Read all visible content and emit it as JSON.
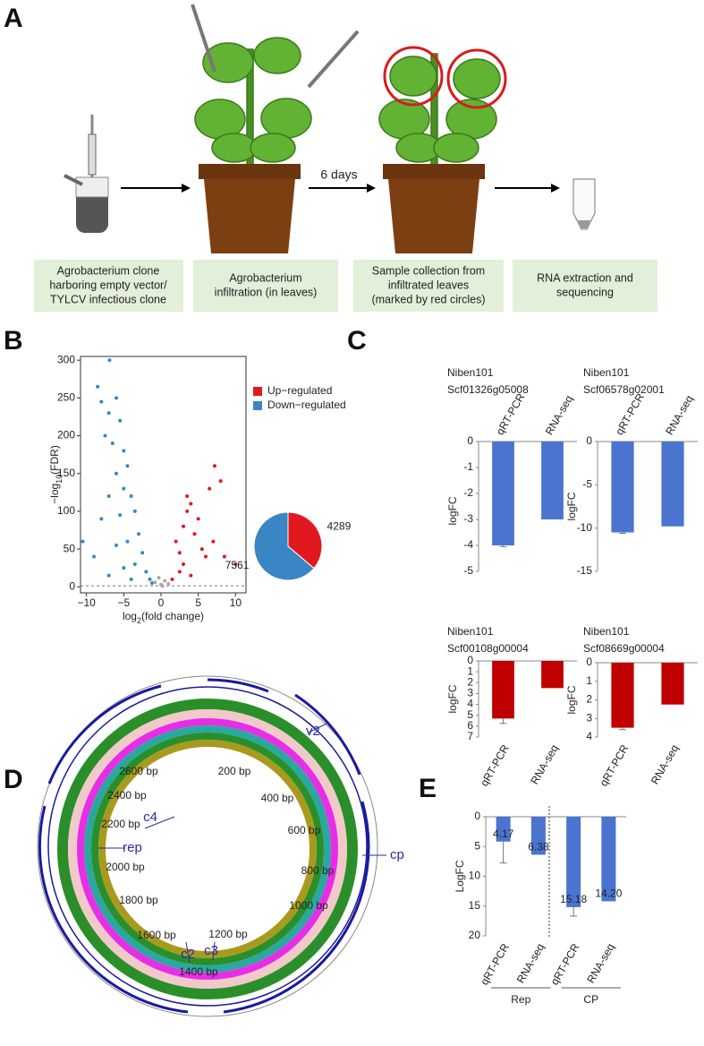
{
  "panel_labels": [
    "A",
    "B",
    "C",
    "D",
    "E"
  ],
  "workflow": {
    "interval": "6 days",
    "steps": [
      [
        "Agrobacterium clone",
        "harboring empty vector/",
        "TYLCV infectious clone"
      ],
      [
        "Agrobacterium",
        "infiltration (in leaves)"
      ],
      [
        "Sample collection from",
        "infiltrated leaves",
        "(marked by red circles)"
      ],
      [
        "RNA extraction and",
        "sequencing"
      ]
    ]
  },
  "genome_map": {
    "ticks": [
      "200 bp",
      "400 bp",
      "600 bp",
      "800 bp",
      "1000 bp",
      "1200 bp",
      "1400 bp",
      "1600 bp",
      "1800 bp",
      "2000 bp",
      "2200 bp",
      "2400 bp",
      "2600 bp"
    ],
    "genes": [
      "v2",
      "cp",
      "rep",
      "c4",
      "c2",
      "c3"
    ]
  },
  "chart_data": [
    {
      "type": "scatter",
      "y_label_parts": [
        "−log",
        "10",
        "(FDR)"
      ],
      "x_label_parts": [
        "log",
        "2",
        "(fold change)"
      ],
      "xlim": [
        -10.8,
        11.4
      ],
      "ylim": [
        -8,
        305
      ],
      "xticks": [
        {
          "value": -10,
          "label": "−10"
        },
        {
          "value": -5,
          "label": "−5"
        },
        0,
        5,
        10
      ],
      "yticks": [
        0,
        50,
        100,
        150,
        200,
        250,
        300
      ],
      "threshold": 1.3,
      "series": [
        {
          "name": "Up−regulated",
          "color": "#e0191f",
          "x": [
            2,
            2.5,
            3,
            3.5,
            4,
            3.5,
            5,
            6.5,
            7.2,
            8,
            4.5,
            6,
            5.5,
            8.5,
            2.5,
            3,
            4,
            1.5,
            10,
            7
          ],
          "y": [
            60,
            45,
            80,
            100,
            110,
            120,
            90,
            130,
            160,
            140,
            70,
            40,
            50,
            40,
            20,
            30,
            15,
            10,
            30,
            60
          ]
        },
        {
          "name": "Down−regulated",
          "color": "#3a86c4",
          "x": [
            -8.5,
            -6.9,
            -8,
            -7,
            -6,
            -5.5,
            -7.5,
            -6.5,
            -5,
            -4.5,
            -6,
            -5,
            -4,
            -7,
            -3.5,
            -5.5,
            -8,
            -3,
            -4.5,
            -6,
            -2.5,
            -9,
            -10.5,
            -3.5,
            -2,
            -5,
            -1.5,
            -7,
            -4,
            -1.2
          ],
          "y": [
            265,
            300,
            245,
            230,
            250,
            220,
            200,
            190,
            180,
            160,
            150,
            130,
            120,
            120,
            100,
            95,
            90,
            70,
            60,
            55,
            45,
            40,
            60,
            30,
            20,
            25,
            10,
            15,
            10,
            5
          ]
        },
        {
          "color": "#aaaaaa",
          "x": [
            -0.8,
            0,
            0.5,
            -0.3,
            1,
            0.2
          ],
          "y": [
            6,
            3,
            8,
            12,
            4,
            1
          ]
        }
      ]
    },
    {
      "type": "pie",
      "values": [
        4289,
        7561
      ],
      "colors": [
        "#e0191f",
        "#3a86c4"
      ]
    },
    {
      "type": "bar",
      "title": [
        "Niben101",
        "Scf01326g05008"
      ],
      "y_label": "logFC",
      "categories": [
        "qRT-PCR",
        "RNA-seq"
      ],
      "values": [
        -4.0,
        -3.0
      ],
      "errors": [
        0.05,
        null
      ],
      "color": "#4a74cf",
      "ylim": [
        -5,
        0
      ],
      "yticks": [
        -5,
        -4,
        -3,
        -2,
        -1,
        0
      ]
    },
    {
      "type": "bar",
      "title": [
        "Niben101",
        "Scf06578g02001"
      ],
      "y_label": "logFC",
      "categories": [
        "qRT-PCR",
        "RNA-seq"
      ],
      "values": [
        -10.5,
        -9.8
      ],
      "errors": [
        0.1,
        null
      ],
      "color": "#4a74cf",
      "ylim": [
        -15,
        0
      ],
      "yticks": [
        -15,
        -10,
        -5,
        0
      ]
    },
    {
      "type": "bar",
      "title": [
        "Niben101",
        "Scf00108g00004"
      ],
      "y_label": "logFC",
      "categories": [
        "qRT-PCR",
        "RNA-seq"
      ],
      "values": [
        5.3,
        2.5
      ],
      "errors": [
        0.45,
        null
      ],
      "color": "#c00000",
      "ylim": [
        0,
        7
      ],
      "yticks": [
        0,
        1,
        2,
        3,
        4,
        5,
        6,
        7
      ]
    },
    {
      "type": "bar",
      "title": [
        "Niben101",
        "Scf08669g00004"
      ],
      "y_label": "logFC",
      "categories": [
        "qRT-PCR",
        "RNA-seq"
      ],
      "values": [
        3.5,
        2.25
      ],
      "errors": [
        0.1,
        null
      ],
      "color": "#c00000",
      "ylim": [
        0,
        4
      ],
      "yticks": [
        0,
        1,
        2,
        3,
        4
      ]
    },
    {
      "type": "bar",
      "y_label": "LogFC",
      "categories": [
        "qRT-PCR",
        "RNA-seq",
        "qRT-PCR",
        "RNA-seq"
      ],
      "groups": [
        "Rep",
        "CP"
      ],
      "values": [
        4.17,
        6.38,
        15.18,
        14.2
      ],
      "value_labels": [
        "4.17",
        "6.38",
        "15.18",
        "14.20"
      ],
      "errors": [
        3.6,
        null,
        1.5,
        null
      ],
      "color": "#4a74cf",
      "ylim": [
        0,
        20
      ],
      "yticks": [
        0,
        5,
        10,
        15,
        20
      ]
    }
  ]
}
